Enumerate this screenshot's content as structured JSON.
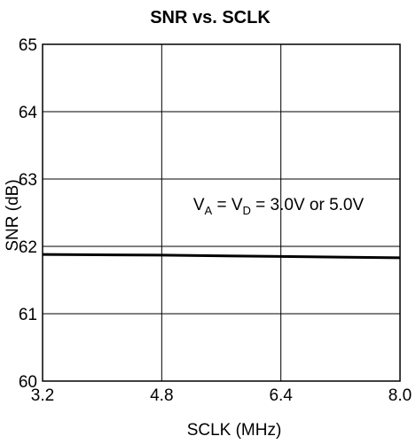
{
  "chart_data": {
    "type": "line",
    "title": "SNR vs. SCLK",
    "xlabel": "SCLK (MHz)",
    "ylabel": "SNR (dB)",
    "xlim": [
      3.2,
      8.0
    ],
    "ylim": [
      60,
      65
    ],
    "x_ticks": [
      "3.2",
      "4.8",
      "6.4",
      "8.0"
    ],
    "y_ticks": [
      "60",
      "61",
      "62",
      "63",
      "64",
      "65"
    ],
    "grid": true,
    "annotation": {
      "parts": [
        {
          "text": "V",
          "sub": false
        },
        {
          "text": "A",
          "sub": true
        },
        {
          "text": " = V",
          "sub": false
        },
        {
          "text": "D",
          "sub": true
        },
        {
          "text": " = 3.0V or 5.0V",
          "sub": false
        }
      ]
    },
    "series": [
      {
        "x": [
          3.2,
          4.8,
          6.4,
          8.0
        ],
        "y": [
          61.88,
          61.87,
          61.85,
          61.83
        ]
      }
    ]
  }
}
